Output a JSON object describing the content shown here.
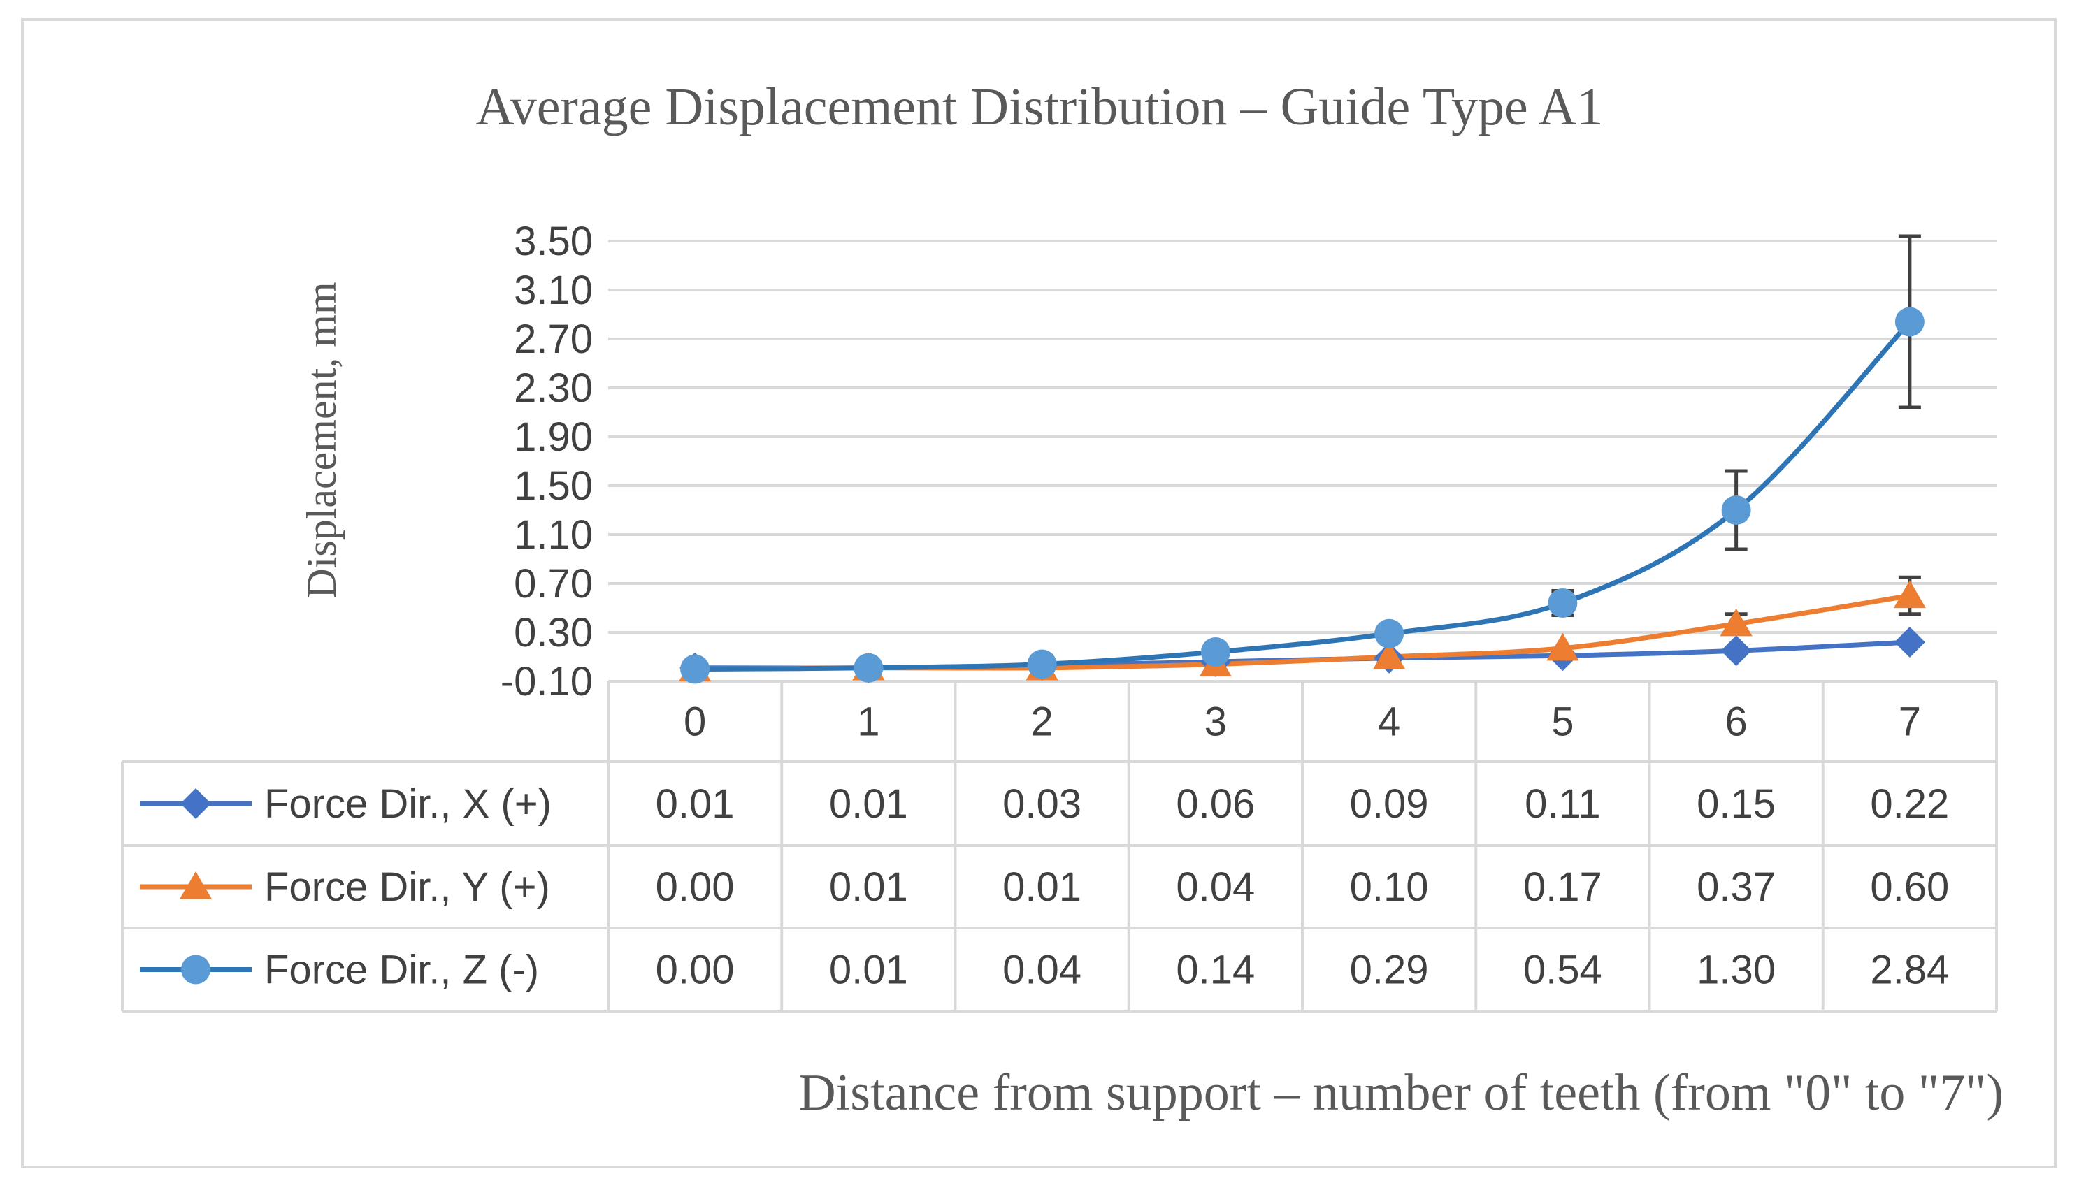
{
  "chart_data": {
    "type": "line",
    "title": "Average Displacement Distribution – Guide Type A1",
    "xlabel": "Distance from support – number of teeth (from \"0\" to \"7\")",
    "ylabel": "Displacement, mm",
    "ylim": [
      -0.1,
      3.5
    ],
    "y_ticks": [
      "-0.10",
      "0.30",
      "0.70",
      "1.10",
      "1.50",
      "1.90",
      "2.30",
      "2.70",
      "3.10",
      "3.50"
    ],
    "categories": [
      "0",
      "1",
      "2",
      "3",
      "4",
      "5",
      "6",
      "7"
    ],
    "grid": true,
    "legend": "data-table",
    "series": [
      {
        "name": "Force Dir., X (+)",
        "marker": "diamond",
        "color": "#4472C4",
        "values": [
          0.01,
          0.01,
          0.03,
          0.06,
          0.09,
          0.11,
          0.15,
          0.22
        ],
        "labels": [
          "0.01",
          "0.01",
          "0.03",
          "0.06",
          "0.09",
          "0.11",
          "0.15",
          "0.22"
        ]
      },
      {
        "name": "Force Dir., Y (+)",
        "marker": "triangle",
        "color": "#ED7D31",
        "values": [
          0.0,
          0.01,
          0.01,
          0.04,
          0.1,
          0.17,
          0.37,
          0.6
        ],
        "labels": [
          "0.00",
          "0.01",
          "0.01",
          "0.04",
          "0.10",
          "0.17",
          "0.37",
          "0.60"
        ],
        "error": [
          0,
          0,
          0,
          0,
          0,
          0,
          0.08,
          0.15
        ]
      },
      {
        "name": "Force Dir., Z (-)",
        "marker": "circle",
        "color": "#2E75B6",
        "marker_color": "#5B9BD5",
        "values": [
          0.0,
          0.01,
          0.04,
          0.14,
          0.29,
          0.54,
          1.3,
          2.84
        ],
        "labels": [
          "0.00",
          "0.01",
          "0.04",
          "0.14",
          "0.29",
          "0.54",
          "1.30",
          "2.84"
        ],
        "error": [
          0,
          0,
          0,
          0,
          0,
          0.1,
          0.32,
          0.7
        ]
      }
    ]
  }
}
